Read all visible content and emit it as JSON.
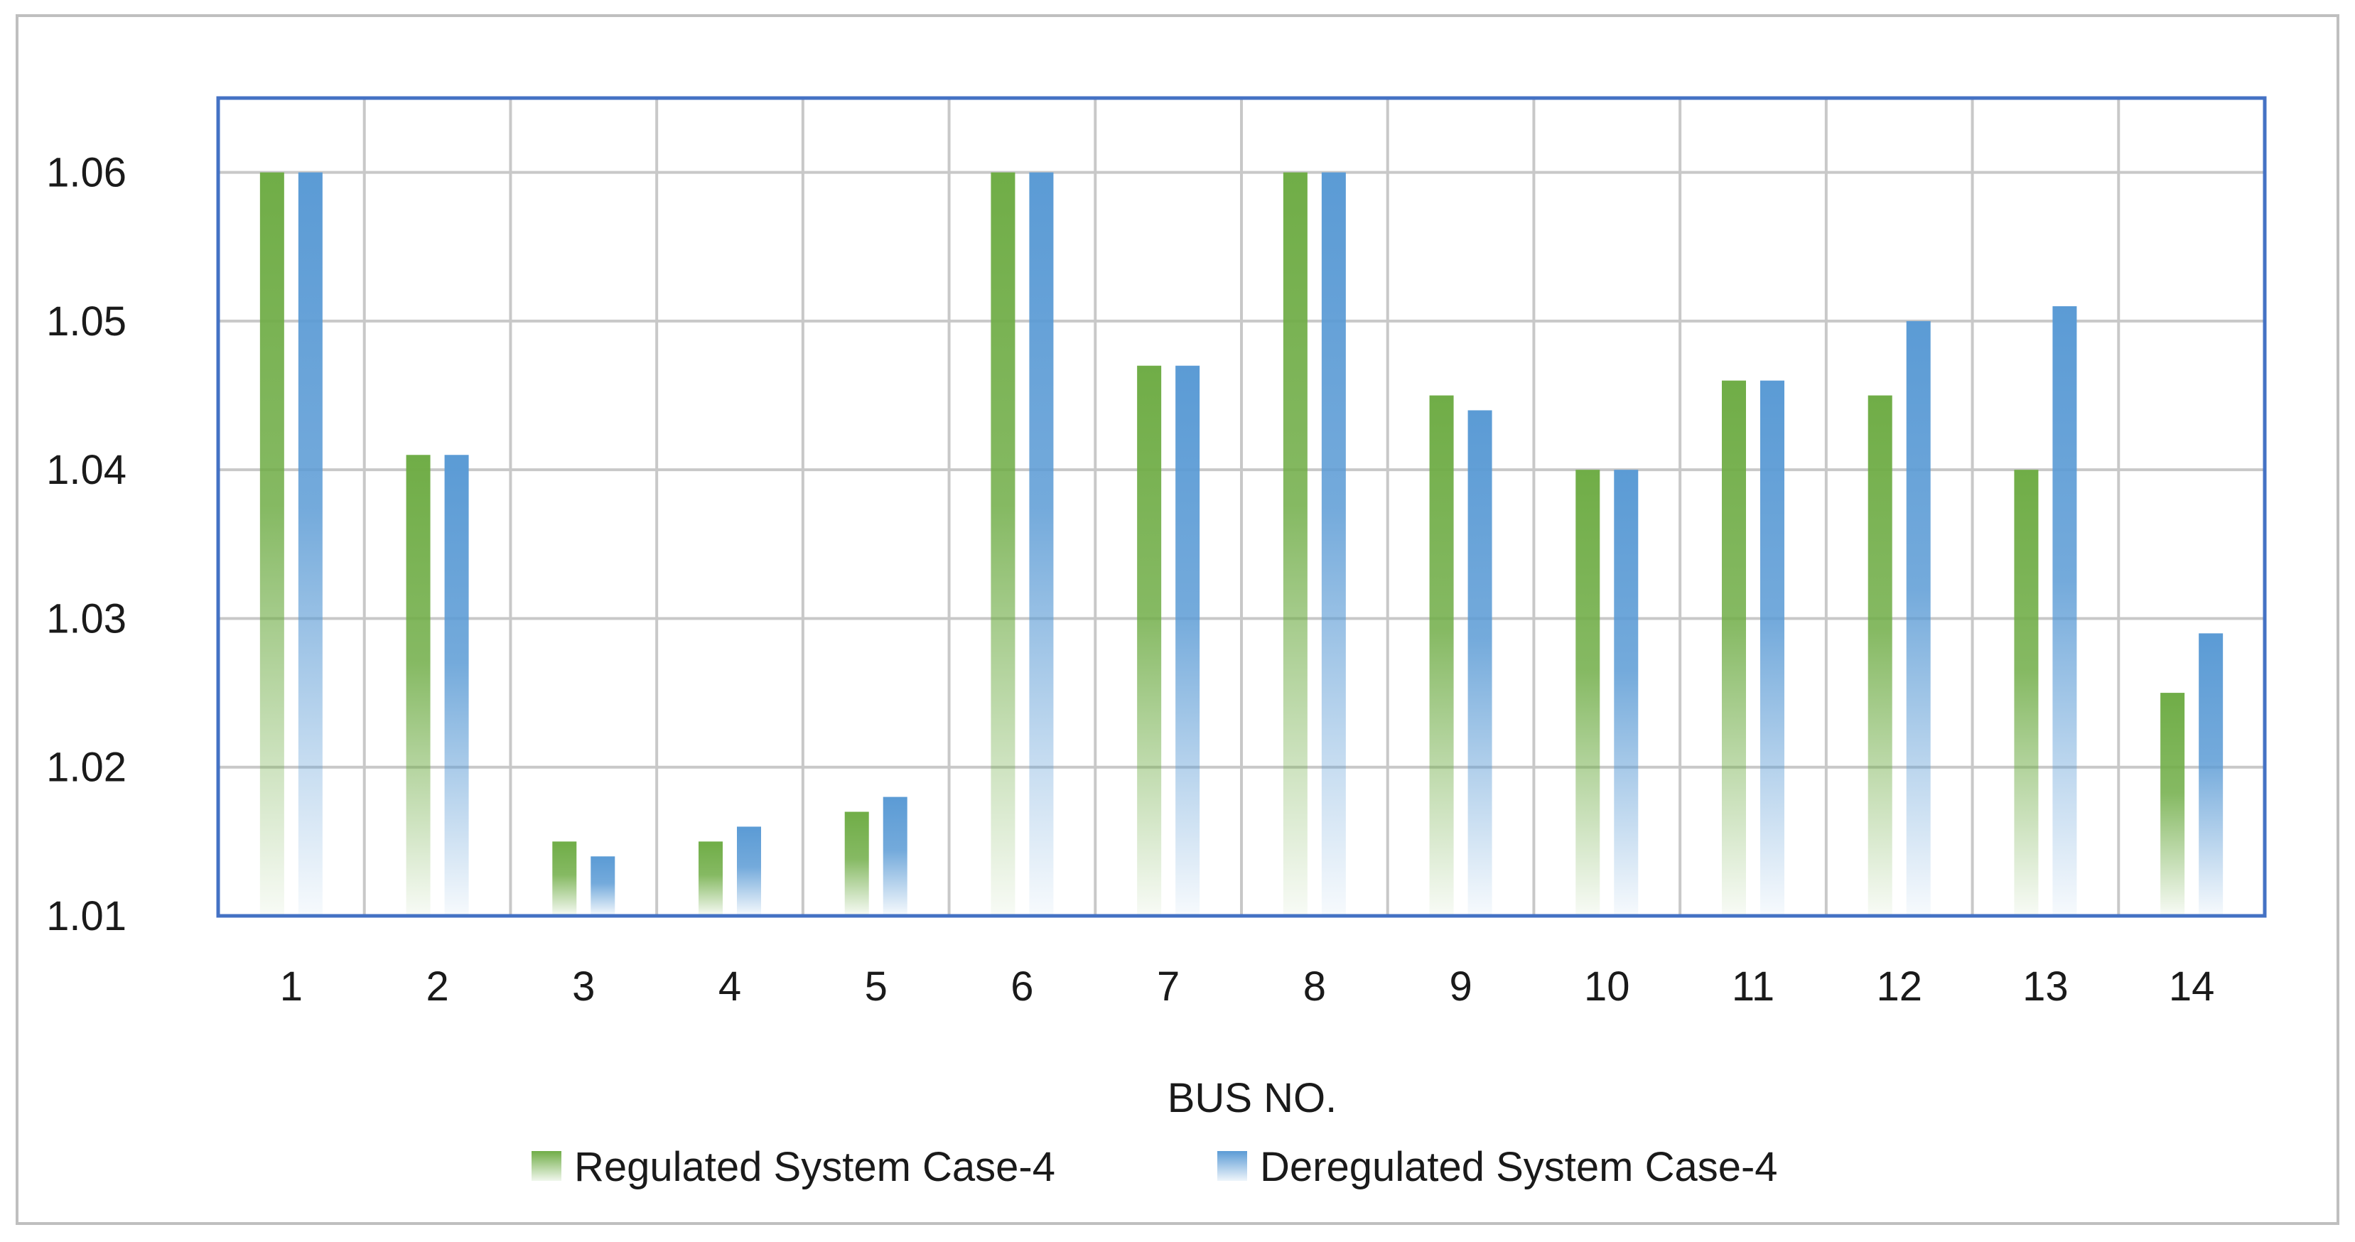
{
  "chart_data": {
    "type": "bar",
    "title": "",
    "xlabel": "BUS NO.",
    "ylabel": "",
    "ylim": [
      1.01,
      1.065
    ],
    "yticks": [
      1.01,
      1.02,
      1.03,
      1.04,
      1.05,
      1.06
    ],
    "ytick_labels": [
      "1.01",
      "1.02",
      "1.03",
      "1.04",
      "1.05",
      "1.06"
    ],
    "grid": true,
    "legend_position": "bottom",
    "categories": [
      "1",
      "2",
      "3",
      "4",
      "5",
      "6",
      "7",
      "8",
      "9",
      "10",
      "11",
      "12",
      "13",
      "14"
    ],
    "series": [
      {
        "name": "Regulated System Case-4",
        "color": "#70ad47",
        "values": [
          1.06,
          1.041,
          1.015,
          1.015,
          1.017,
          1.06,
          1.047,
          1.06,
          1.045,
          1.04,
          1.046,
          1.045,
          1.04,
          1.025
        ]
      },
      {
        "name": "Deregulated System Case-4",
        "color": "#5b9bd5",
        "values": [
          1.06,
          1.041,
          1.014,
          1.016,
          1.018,
          1.06,
          1.047,
          1.06,
          1.044,
          1.04,
          1.046,
          1.05,
          1.051,
          1.029
        ]
      }
    ]
  },
  "colors": {
    "plot_border": "#4472c4",
    "grid": "#c8c8c8",
    "frame": "#bfbfbf"
  }
}
